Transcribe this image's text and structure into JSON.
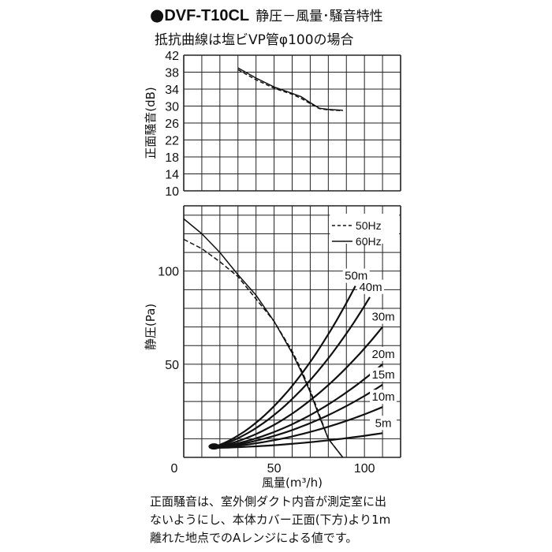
{
  "header": {
    "bullet": "●",
    "model": "DVF-T10CL",
    "title": "静圧－風量･騒音特性",
    "subtitle": "抵抗曲線は塩ビVP管φ100の場合"
  },
  "chart_data": [
    {
      "type": "line",
      "title": "",
      "ylabel": "正面騒音(dB)",
      "ylim": [
        10,
        42
      ],
      "xlim": [
        0,
        120
      ],
      "yticks": [
        "10",
        "14",
        "18",
        "22",
        "26",
        "30",
        "34",
        "38",
        "42"
      ],
      "grid": true,
      "series": [
        {
          "name": "50Hz",
          "style": "dashed",
          "x": [
            30,
            40,
            50,
            60,
            65,
            70,
            75,
            80,
            88
          ],
          "y": [
            38.6,
            36.2,
            34.2,
            32.8,
            31.8,
            30.6,
            29.4,
            29.1,
            28.9
          ]
        },
        {
          "name": "60Hz",
          "style": "solid",
          "x": [
            30,
            40,
            50,
            60,
            65,
            70,
            75,
            80,
            88
          ],
          "y": [
            39.0,
            36.6,
            34.5,
            33.0,
            32.2,
            30.8,
            29.5,
            29.2,
            29.0
          ]
        }
      ]
    },
    {
      "type": "line",
      "title": "",
      "xlabel": "風量(m³/h)",
      "ylabel": "静圧(Pa)",
      "xlim": [
        0,
        120
      ],
      "ylim": [
        0,
        135
      ],
      "xticks": [
        "0",
        "50",
        "100"
      ],
      "yticks": [
        "50",
        "100"
      ],
      "grid": true,
      "legend": {
        "position": "top-right",
        "entries": [
          {
            "name": "50Hz",
            "style": "dashed"
          },
          {
            "name": "60Hz",
            "style": "solid"
          }
        ]
      },
      "series": [
        {
          "name": "50Hz",
          "style": "dashed",
          "x": [
            0,
            10,
            20,
            30,
            40,
            50,
            60,
            65,
            70,
            75,
            80,
            88
          ],
          "y": [
            117,
            112,
            105,
            97,
            85,
            73,
            57,
            47,
            36,
            23,
            10,
            0
          ]
        },
        {
          "name": "60Hz",
          "style": "solid",
          "x": [
            0,
            10,
            20,
            30,
            40,
            50,
            60,
            65,
            70,
            75,
            80,
            88
          ],
          "y": [
            128,
            120,
            110,
            98,
            87,
            73,
            56,
            46,
            35,
            22,
            10,
            0
          ]
        }
      ],
      "resistance_curves": [
        {
          "label": "50m",
          "x": [
            15,
            95
          ],
          "y": [
            5,
            92
          ]
        },
        {
          "label": "40m",
          "x": [
            15,
            103
          ],
          "y": [
            5,
            86
          ]
        },
        {
          "label": "30m",
          "x": [
            15,
            110
          ],
          "y": [
            5,
            70
          ]
        },
        {
          "label": "20m",
          "x": [
            15,
            110
          ],
          "y": [
            5,
            50
          ]
        },
        {
          "label": "15m",
          "x": [
            15,
            110
          ],
          "y": [
            5,
            39
          ]
        },
        {
          "label": "10m",
          "x": [
            15,
            110
          ],
          "y": [
            5,
            27
          ]
        },
        {
          "label": "5m",
          "x": [
            15,
            110
          ],
          "y": [
            5,
            13
          ]
        }
      ]
    }
  ],
  "note": {
    "line1": "正面騒音は、室外側ダクト内音が測定室に出",
    "line2": "ないようにし、本体カバー正面(下方)より1m",
    "line3": "離れた地点でのAレンジによる値です。"
  }
}
